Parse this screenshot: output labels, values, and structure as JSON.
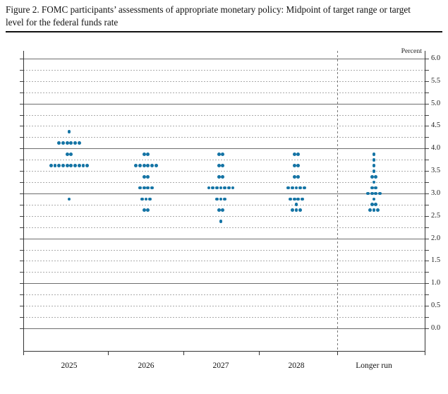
{
  "figure": {
    "title": "Figure 2. FOMC participants’ assessments of appropriate monetary policy: Midpoint of target range or target level for the federal funds rate"
  },
  "chart_data": {
    "type": "scatter",
    "subtype": "fomc-dot-plot",
    "title": "Figure 2. FOMC participants’ assessments of appropriate monetary policy: Midpoint of target range or target level for the federal funds rate",
    "unit_label": "Percent",
    "categories": [
      "2025",
      "2026",
      "2027",
      "2028",
      "Longer run"
    ],
    "y_axis": {
      "min": 0.0,
      "max": 6.0,
      "label_step": 0.5,
      "grid_step": 0.25,
      "solid_line_step": 1.0,
      "tick_labels": [
        "6.0",
        "5.5",
        "5.0",
        "4.5",
        "4.0",
        "3.5",
        "3.0",
        "2.5",
        "2.0",
        "1.5",
        "1.0",
        "0.5",
        "0.0"
      ],
      "grid_on": true
    },
    "dot_color": "#1574a5",
    "dots": [
      {
        "category": "2025",
        "distribution": [
          {
            "rate": 4.375,
            "count": 1
          },
          {
            "rate": 4.125,
            "count": 6
          },
          {
            "rate": 3.875,
            "count": 2
          },
          {
            "rate": 3.625,
            "count": 10
          },
          {
            "rate": 2.875,
            "count": 1
          }
        ]
      },
      {
        "category": "2026",
        "distribution": [
          {
            "rate": 3.875,
            "count": 2
          },
          {
            "rate": 3.625,
            "count": 6
          },
          {
            "rate": 3.375,
            "count": 2
          },
          {
            "rate": 3.125,
            "count": 4
          },
          {
            "rate": 2.875,
            "count": 3
          },
          {
            "rate": 2.625,
            "count": 2
          }
        ]
      },
      {
        "category": "2027",
        "distribution": [
          {
            "rate": 3.875,
            "count": 2
          },
          {
            "rate": 3.625,
            "count": 2
          },
          {
            "rate": 3.375,
            "count": 2
          },
          {
            "rate": 3.125,
            "count": 7
          },
          {
            "rate": 2.875,
            "count": 3
          },
          {
            "rate": 2.625,
            "count": 2
          },
          {
            "rate": 2.375,
            "count": 1
          }
        ]
      },
      {
        "category": "2028",
        "distribution": [
          {
            "rate": 3.875,
            "count": 2
          },
          {
            "rate": 3.625,
            "count": 2
          },
          {
            "rate": 3.375,
            "count": 2
          },
          {
            "rate": 3.125,
            "count": 5
          },
          {
            "rate": 2.875,
            "count": 4
          },
          {
            "rate": 2.75,
            "count": 1
          },
          {
            "rate": 2.625,
            "count": 3
          }
        ]
      },
      {
        "category": "Longer run",
        "distribution": [
          {
            "rate": 3.875,
            "count": 1
          },
          {
            "rate": 3.75,
            "count": 1
          },
          {
            "rate": 3.625,
            "count": 1
          },
          {
            "rate": 3.5,
            "count": 1
          },
          {
            "rate": 3.375,
            "count": 2
          },
          {
            "rate": 3.25,
            "count": 1
          },
          {
            "rate": 3.125,
            "count": 2
          },
          {
            "rate": 3.0,
            "count": 4
          },
          {
            "rate": 2.875,
            "count": 1
          },
          {
            "rate": 2.75,
            "count": 2
          },
          {
            "rate": 2.625,
            "count": 3
          }
        ]
      }
    ]
  }
}
